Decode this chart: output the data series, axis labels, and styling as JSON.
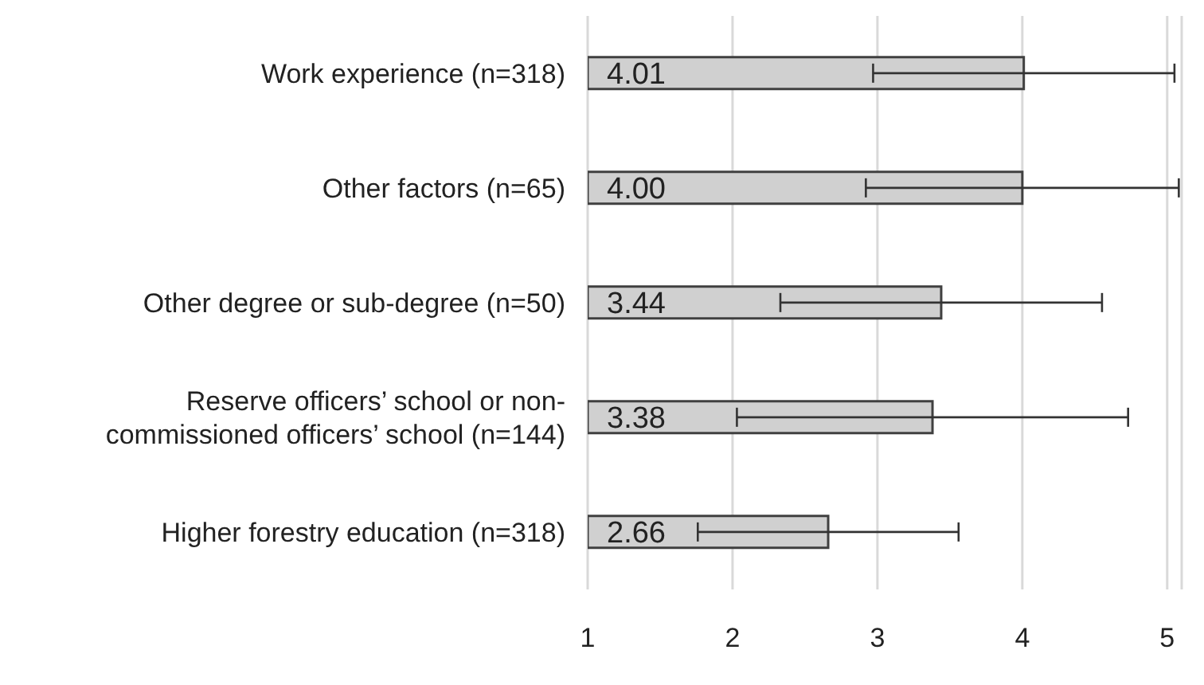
{
  "chart_data": {
    "type": "bar",
    "orientation": "horizontal",
    "categories": [
      "Work experience (n=318)",
      "Other factors (n=65)",
      "Other degree or sub-degree (n=50)",
      "Reserve officers’ school or non-commissioned officers’ school (n=144)",
      "Higher forestry education (n=318)"
    ],
    "values": [
      4.01,
      4.0,
      3.44,
      3.38,
      2.66
    ],
    "errors": [
      1.04,
      1.08,
      1.11,
      1.35,
      0.9
    ],
    "value_labels": [
      "4.01",
      "4.00",
      "3.44",
      "3.38",
      "2.66"
    ],
    "color": "#d0d0d0",
    "grid": "x",
    "xlim": [
      1,
      5.1
    ],
    "xticks": [
      1,
      2,
      3,
      4,
      5
    ]
  }
}
